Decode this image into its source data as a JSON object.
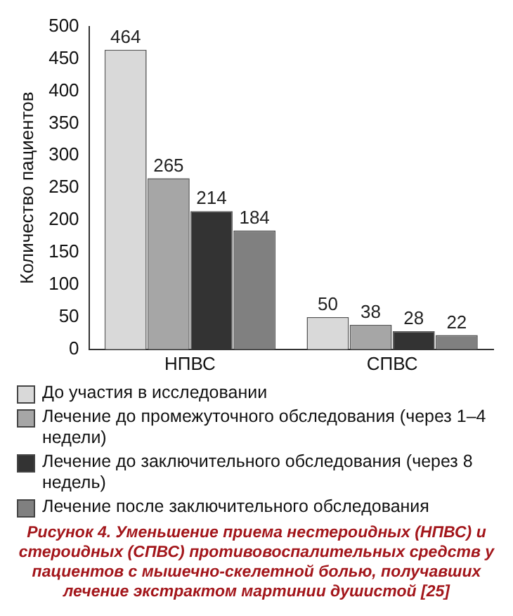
{
  "chart_data": {
    "type": "bar",
    "ylabel": "Количество пациентов",
    "categories": [
      "НПВС",
      "СПВС"
    ],
    "series": [
      {
        "name": "До участия в исследовании",
        "color": "#d9d9d9",
        "values": [
          464,
          50
        ]
      },
      {
        "name": "Лечение до промежуточного обследования (через 1–4 недели)",
        "color": "#a6a6a6",
        "values": [
          265,
          38
        ]
      },
      {
        "name": "Лечение до заключительного обследования (через 8 недель)",
        "color": "#333333",
        "values": [
          214,
          28
        ]
      },
      {
        "name": "Лечение после заключительного обследования",
        "color": "#808080",
        "values": [
          184,
          22
        ]
      }
    ],
    "ylim": [
      0,
      500
    ],
    "yticks": [
      0,
      50,
      100,
      150,
      200,
      250,
      300,
      350,
      400,
      450,
      500
    ],
    "grid": false,
    "legend": "bottom",
    "data_labels": true,
    "annotations": [
      "Рисунок 4. Уменьшение приема нестероидных (НПВС) и стероидных (СПВС) противовоспалительных средств у пациентов с мышечно-скелетной болью, получавших лечение экстрактом мартинии душистой [25]"
    ]
  }
}
